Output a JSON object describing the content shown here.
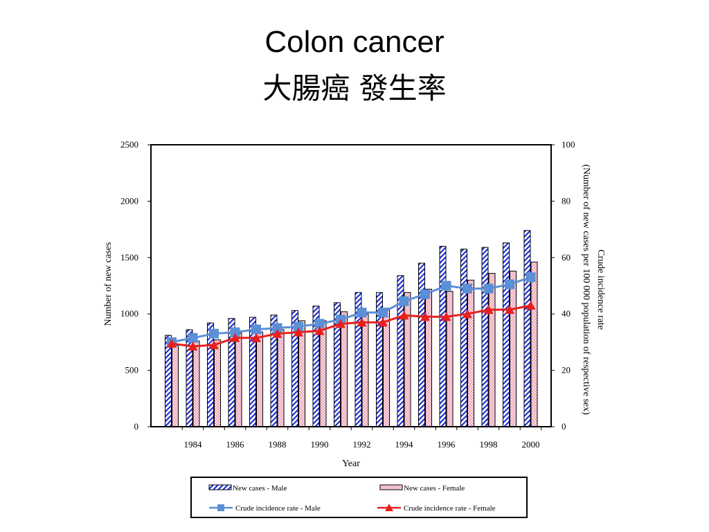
{
  "slide": {
    "title": "Colon cancer",
    "subtitle": "大腸癌 發生率"
  },
  "chart_data": {
    "type": "bar",
    "combo": "bar+line, dual y-axis",
    "years": [
      1983,
      1984,
      1985,
      1986,
      1987,
      1988,
      1989,
      1990,
      1991,
      1992,
      1993,
      1994,
      1995,
      1996,
      1997,
      1998,
      1999,
      2000
    ],
    "x_tick_labels": [
      "1984",
      "1986",
      "1988",
      "1990",
      "1992",
      "1994",
      "1996",
      "1998",
      "2000"
    ],
    "xlabel": "Year",
    "ylabel_left": "Number of new cases",
    "ylabel_right_line1": "Crude incidence  rate",
    "ylabel_right_line2": "(Number of new cases  per 100 000 population of respective sex)",
    "ylim_left": [
      0,
      2500
    ],
    "yticks_left": [
      0,
      500,
      1000,
      1500,
      2000,
      2500
    ],
    "ylim_right": [
      0,
      100
    ],
    "yticks_right": [
      0,
      20,
      40,
      60,
      80,
      100
    ],
    "grid": false,
    "legend_position": "bottom",
    "series": [
      {
        "name": "New cases - Male",
        "kind": "bar",
        "axis": "left",
        "color": "#1f2fd6",
        "values": [
          810,
          860,
          920,
          960,
          970,
          990,
          1030,
          1070,
          1100,
          1190,
          1190,
          1340,
          1450,
          1600,
          1575,
          1590,
          1630,
          1740
        ]
      },
      {
        "name": "New cases - Female",
        "kind": "bar",
        "axis": "left",
        "color": "#f4b8c8",
        "values": [
          720,
          760,
          770,
          830,
          840,
          860,
          940,
          940,
          1020,
          1000,
          1050,
          1190,
          1220,
          1200,
          1300,
          1360,
          1380,
          1460
        ]
      },
      {
        "name": "Crude incidence rate  - Male",
        "kind": "line",
        "axis": "right",
        "color": "#5b8fd6",
        "values": [
          30,
          31.5,
          33,
          33.5,
          34.5,
          35,
          35.5,
          36.5,
          38,
          40.5,
          40.5,
          44.5,
          47,
          50,
          49,
          49,
          50.5,
          53
        ]
      },
      {
        "name": "Crude incidence rate  - Female",
        "kind": "line",
        "axis": "right",
        "color": "#e8201c",
        "values": [
          29.5,
          28.5,
          29,
          31.5,
          31.5,
          33,
          33.5,
          34,
          36.5,
          37,
          37,
          39.5,
          39,
          39,
          40,
          41.5,
          41.5,
          43
        ]
      }
    ]
  }
}
